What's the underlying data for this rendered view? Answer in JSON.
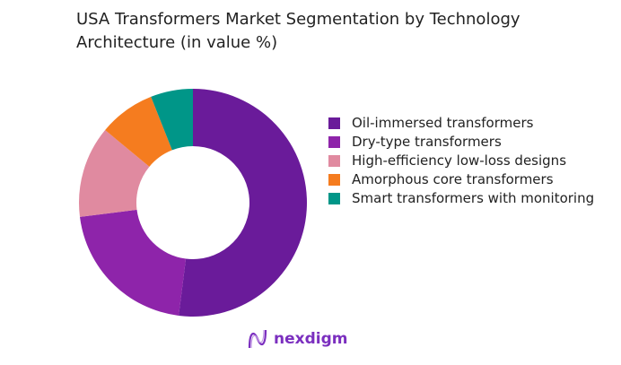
{
  "chart_data": {
    "type": "pie",
    "donut": true,
    "title": "USA Transformers Market Segmentation by Technology Architecture (in value %)",
    "categories": [
      "Oil-immersed transformers",
      "Dry-type transformers",
      "High-efficiency low-loss designs",
      "Amorphous core transformers",
      "Smart transformers with monitoring"
    ],
    "values": [
      52,
      21,
      13,
      8,
      6
    ],
    "colors": [
      "#6a1b9a",
      "#8e24aa",
      "#e08aa0",
      "#f57c1f",
      "#009688"
    ],
    "legend_position": "right"
  },
  "legend": {
    "items": [
      {
        "label": "Oil-immersed transformers"
      },
      {
        "label": "Dry-type transformers"
      },
      {
        "label": "High-efficiency low-loss designs"
      },
      {
        "label": "Amorphous core transformers"
      },
      {
        "label": "Smart transformers with monitoring"
      }
    ]
  },
  "logo": {
    "text": "nexdigm",
    "color": "#7b2fbf"
  }
}
